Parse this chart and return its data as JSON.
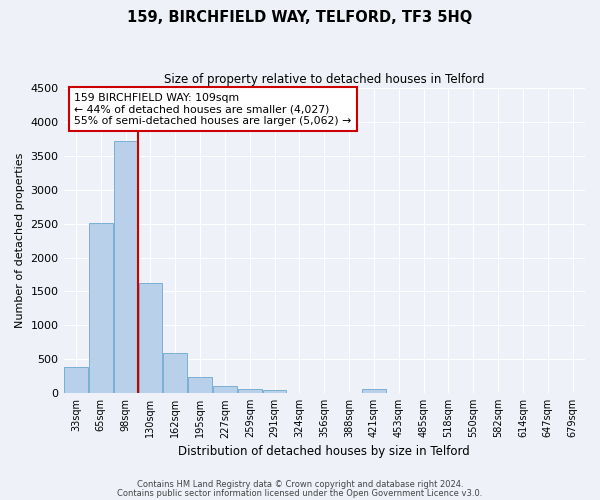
{
  "title": "159, BIRCHFIELD WAY, TELFORD, TF3 5HQ",
  "subtitle": "Size of property relative to detached houses in Telford",
  "xlabel": "Distribution of detached houses by size in Telford",
  "ylabel": "Number of detached properties",
  "categories": [
    "33sqm",
    "65sqm",
    "98sqm",
    "130sqm",
    "162sqm",
    "195sqm",
    "227sqm",
    "259sqm",
    "291sqm",
    "324sqm",
    "356sqm",
    "388sqm",
    "421sqm",
    "453sqm",
    "485sqm",
    "518sqm",
    "550sqm",
    "582sqm",
    "614sqm",
    "647sqm",
    "679sqm"
  ],
  "values": [
    390,
    2510,
    3720,
    1630,
    600,
    245,
    110,
    60,
    40,
    0,
    0,
    0,
    55,
    0,
    0,
    0,
    0,
    0,
    0,
    0,
    0
  ],
  "bar_color": "#b8d0ea",
  "bar_edge_color": "#7aafd4",
  "vline_color": "#cc0000",
  "annotation_text": "159 BIRCHFIELD WAY: 109sqm\n← 44% of detached houses are smaller (4,027)\n55% of semi-detached houses are larger (5,062) →",
  "annotation_box_color": "#ffffff",
  "annotation_box_edge": "#cc0000",
  "ylim": [
    0,
    4500
  ],
  "yticks": [
    0,
    500,
    1000,
    1500,
    2000,
    2500,
    3000,
    3500,
    4000,
    4500
  ],
  "background_color": "#eef2f8",
  "grid_color": "#ffffff",
  "footer_line1": "Contains HM Land Registry data © Crown copyright and database right 2024.",
  "footer_line2": "Contains public sector information licensed under the Open Government Licence v3.0."
}
